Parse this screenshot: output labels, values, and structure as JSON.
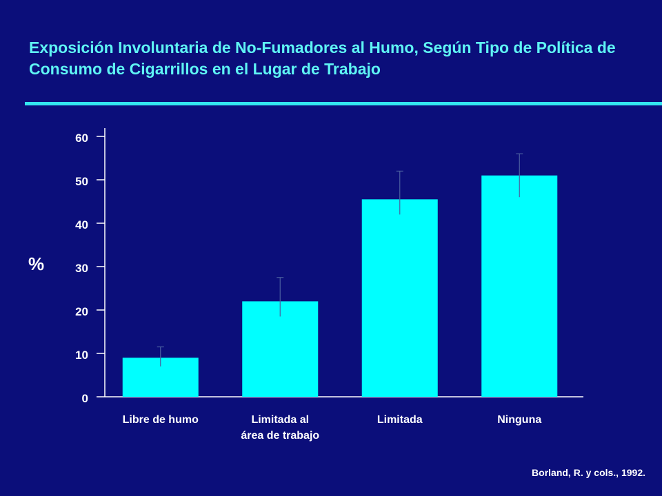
{
  "slide": {
    "title": "Exposición Involuntaria de No-Fumadores al Humo, Según Tipo de Política de Consumo de Cigarrillos en el Lugar de Trabajo",
    "source": "Borland, R. y cols., 1992."
  },
  "colors": {
    "background": "#0b0e7a",
    "title": "#5ff4f4",
    "rule": "#33e6f0",
    "bar": "#00ffff",
    "axis": "#ffffff"
  },
  "chart_data": {
    "type": "bar",
    "title": "",
    "xlabel": "",
    "ylabel": "%",
    "categories": [
      "Libre de humo",
      "Limitada al área de trabajo",
      "Limitada",
      "Ninguna"
    ],
    "values": [
      9,
      22,
      45.5,
      51
    ],
    "error_bars": [
      {
        "low": 7,
        "high": 11.5
      },
      {
        "low": 18.5,
        "high": 27.5
      },
      {
        "low": 42,
        "high": 52
      },
      {
        "low": 46,
        "high": 56
      }
    ],
    "ylim": [
      0,
      60
    ],
    "yticks": [
      0,
      10,
      20,
      30,
      40,
      50,
      60
    ],
    "grid": false,
    "legend": "none"
  }
}
